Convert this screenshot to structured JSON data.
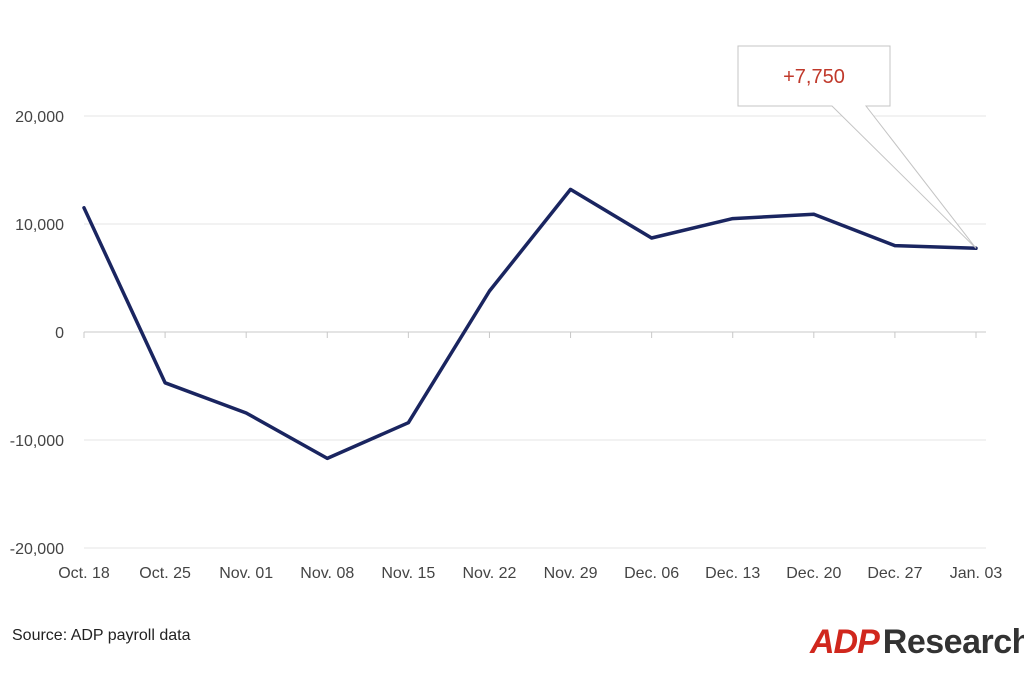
{
  "chart_data": {
    "type": "line",
    "categories": [
      "Oct. 18",
      "Oct. 25",
      "Nov. 01",
      "Nov. 08",
      "Nov. 15",
      "Nov. 22",
      "Nov. 29",
      "Dec. 06",
      "Dec. 13",
      "Dec. 20",
      "Dec. 27",
      "Jan. 03"
    ],
    "series": [
      {
        "values": [
          11500,
          -4700,
          -7500,
          -11700,
          -8400,
          3800,
          13200,
          8700,
          10500,
          10900,
          8000,
          7750
        ]
      }
    ],
    "yticks": [
      20000,
      10000,
      0,
      -10000,
      -20000
    ],
    "ytick_labels": [
      "20,000",
      "10,000",
      "0",
      "-10,000",
      "-20,000"
    ],
    "ylim": [
      -20000,
      20000
    ],
    "grid": true,
    "line_color": "#1a2560",
    "annotation": {
      "text": "+7,750",
      "target_index": 11,
      "color": "#c0392b"
    }
  },
  "source": "Source: ADP payroll data",
  "logo": {
    "mark": "ADP",
    "word": "Research",
    "mark_color": "#d0271d",
    "word_color": "#333333"
  }
}
